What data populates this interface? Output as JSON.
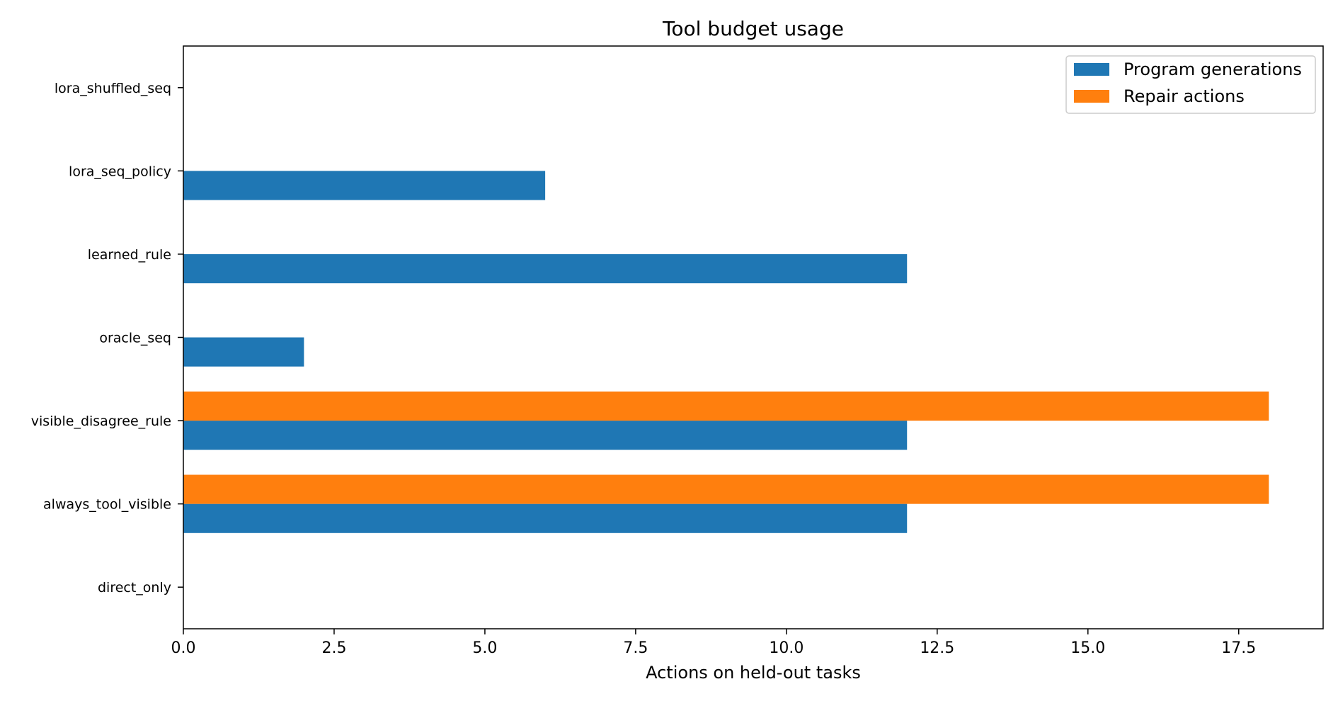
{
  "chart_data": {
    "type": "bar",
    "orientation": "horizontal",
    "title": "Tool budget usage",
    "xlabel": "Actions on held-out tasks",
    "ylabel": "",
    "categories": [
      "direct_only",
      "always_tool_visible",
      "visible_disagree_rule",
      "oracle_seq",
      "learned_rule",
      "lora_seq_policy",
      "lora_shuffled_seq"
    ],
    "series": [
      {
        "name": "Program generations",
        "color": "#1f77b4",
        "values": [
          0,
          12,
          12,
          2,
          12,
          6,
          0
        ]
      },
      {
        "name": "Repair actions",
        "color": "#ff7f0e",
        "values": [
          0,
          18,
          18,
          0,
          0,
          0,
          0
        ]
      }
    ],
    "xlim": [
      0,
      18.9
    ],
    "xticks": [
      0.0,
      2.5,
      5.0,
      7.5,
      10.0,
      12.5,
      15.0,
      17.5
    ],
    "xtick_labels": [
      "0.0",
      "2.5",
      "5.0",
      "7.5",
      "10.0",
      "12.5",
      "15.0",
      "17.5"
    ],
    "legend_position": "top-right",
    "grid": false
  }
}
